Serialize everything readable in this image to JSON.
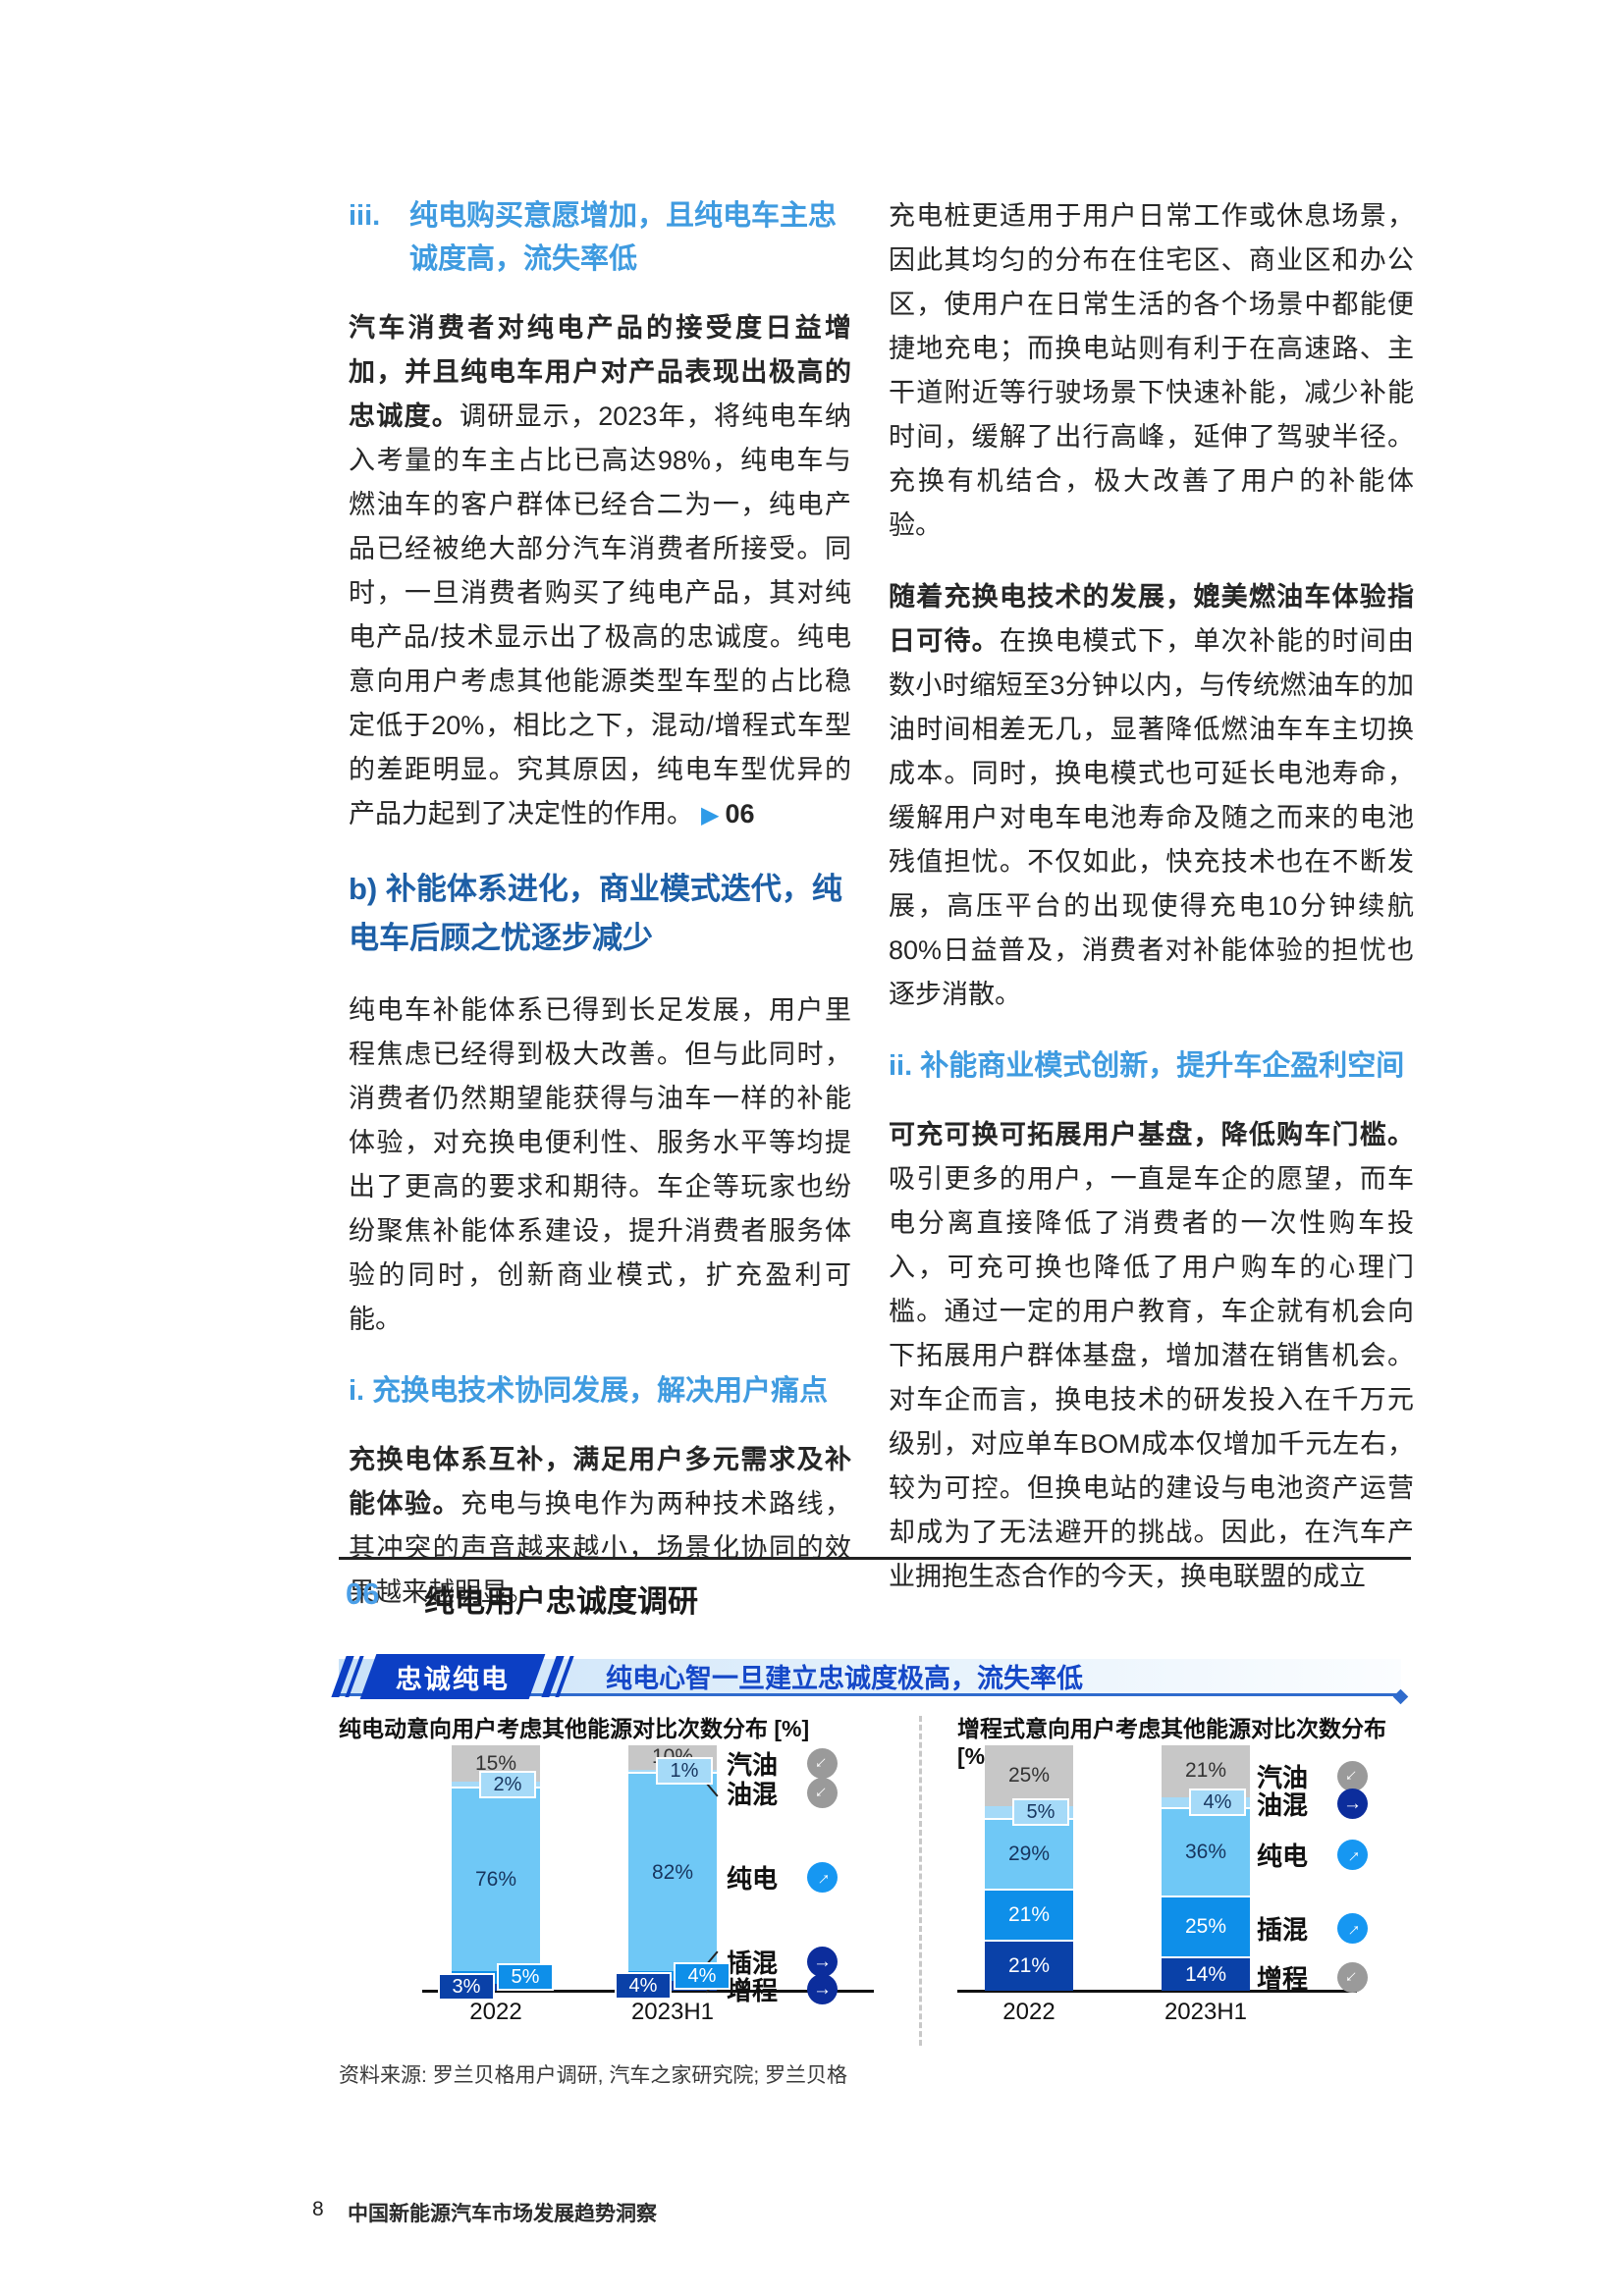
{
  "left_column": {
    "heading_iii_marker": "iii.",
    "heading_iii_text": "纯电购买意愿增加，且纯电车主忠诚度高，流失率低",
    "p1_lead": "汽车消费者对纯电产品的接受度日益增加，并且纯电车用户对产品表现出极高的忠诚度。",
    "p1_rest": "调研显示，2023年，将纯电车纳入考量的车主占比已高达98%，纯电车与燃油车的客户群体已经合二为一，纯电产品已经被绝大部分汽车消费者所接受。同时，一旦消费者购买了纯电产品，其对纯电产品/技术显示出了极高的忠诚度。纯电意向用户考虑其他能源类型车型的占比稳定低于20%，相比之下，混动/增程式车型的差距明显。究其原因，纯电车型优异的产品力起到了决定性的作用。",
    "p1_ref_marker": "▶",
    "p1_ref_number": "06",
    "heading_b": "b) 补能体系进化，商业模式迭代，纯电车后顾之忧逐步减少",
    "p2": "纯电车补能体系已得到长足发展，用户里程焦虑已经得到极大改善。但与此同时，消费者仍然期望能获得与油车一样的补能体验，对充换电便利性、服务水平等均提出了更高的要求和期待。车企等玩家也纷纷聚焦补能体系建设，提升消费者服务体验的同时，创新商业模式，扩充盈利可能。",
    "heading_i": "i. 充换电技术协同发展，解决用户痛点",
    "p3_lead": "充换电体系互补，满足用户多元需求及补能体验。",
    "p3_rest": "充电与换电作为两种技术路线，其冲突的声音越来越小，场景化协同的效果越来越明显。"
  },
  "right_column": {
    "p1": "充电桩更适用于用户日常工作或休息场景，因此其均匀的分布在住宅区、商业区和办公区，使用户在日常生活的各个场景中都能便捷地充电；而换电站则有利于在高速路、主干道附近等行驶场景下快速补能，减少补能时间，缓解了出行高峰，延伸了驾驶半径。充换有机结合，极大改善了用户的补能体验。",
    "p2_lead": "随着充换电技术的发展，媲美燃油车体验指日可待。",
    "p2_rest": "在换电模式下，单次补能的时间由数小时缩短至3分钟以内，与传统燃油车的加油时间相差无几，显著降低燃油车车主切换成本。同时，换电模式也可延长电池寿命，缓解用户对电车电池寿命及随之而来的电池残值担忧。不仅如此，快充技术也在不断发展，高压平台的出现使得充电10分钟续航80%日益普及，消费者对补能体验的担忧也逐步消散。",
    "heading_ii": "ii. 补能商业模式创新，提升车企盈利空间",
    "p3_lead": "可充可换可拓展用户基盘，降低购车门槛。",
    "p3_rest": "吸引更多的用户，一直是车企的愿望，而车电分离直接降低了消费者的一次性购车投入，可充可换也降低了用户购车的心理门槛。通过一定的用户教育，车企就有机会向下拓展用户群体基盘，增加潜在销售机会。对车企而言，换电技术的研发投入在千万元级别，对应单车BOM成本仅增加千元左右，较为可控。但换电站的建设与电池资产运营却成为了无法避开的挑战。因此，在汽车产业拥抱生态合作的今天，换电联盟的成立"
  },
  "figure": {
    "number": "06",
    "title": "纯电用户忠诚度调研",
    "badge": "忠诚纯电",
    "banner_text": "纯电心智一旦建立忠诚度极高，流失率低",
    "source": "资料来源: 罗兰贝格用户调研, 汽车之家研究院; 罗兰贝格",
    "accent_colors": {
      "badge_blue": "#0c3fc4",
      "banner_text_blue": "#1548c8",
      "heading_light_blue": "#3f9be0",
      "heading_dark_blue": "#1d5fa6",
      "figure_number_blue": "#4a9fe8"
    }
  },
  "chart_data": [
    {
      "type": "bar",
      "stacked": true,
      "title": "纯电动意向用户考虑其他能源对比次数分布 [%]",
      "categories": [
        "2022",
        "2023H1"
      ],
      "ylim": [
        0,
        100
      ],
      "legend_position": "right",
      "legend_y": [
        0,
        30,
        116,
        202,
        230
      ],
      "series": [
        {
          "name": "汽油",
          "values": [
            15,
            10
          ],
          "color": "#c7c7c7",
          "label_color": "#333333",
          "trend": "down",
          "trend_color": "#9a9a9a"
        },
        {
          "name": "油混",
          "values": [
            2,
            1
          ],
          "color": "#a5daf8",
          "label_color": "#17355e",
          "trend": "down",
          "trend_color": "#9a9a9a"
        },
        {
          "name": "纯电",
          "values": [
            76,
            82
          ],
          "color": "#6fc8f6",
          "label_color": "#17355e",
          "trend": "up",
          "trend_color": "#1697f2"
        },
        {
          "name": "插混",
          "values": [
            5,
            4
          ],
          "color": "#0e8fe9",
          "label_color": "#ffffff",
          "trend": "flat",
          "trend_color": "#0c2d9c"
        },
        {
          "name": "增程",
          "values": [
            3,
            4
          ],
          "color": "#0a41a8",
          "label_color": "#ffffff",
          "trend": "flat",
          "trend_color": "#0c2d9c"
        }
      ]
    },
    {
      "type": "bar",
      "stacked": true,
      "title": "增程式意向用户考虑其他能源对比次数分布 [%]",
      "categories": [
        "2022",
        "2023H1"
      ],
      "ylim": [
        0,
        100
      ],
      "legend_position": "right",
      "legend_y": [
        13,
        41,
        93,
        168,
        218
      ],
      "series": [
        {
          "name": "汽油",
          "values": [
            25,
            21
          ],
          "color": "#c7c7c7",
          "label_color": "#333333",
          "trend": "down",
          "trend_color": "#9a9a9a"
        },
        {
          "name": "油混",
          "values": [
            5,
            4
          ],
          "color": "#a5daf8",
          "label_color": "#17355e",
          "trend": "flat",
          "trend_color": "#0c2d9c"
        },
        {
          "name": "纯电",
          "values": [
            29,
            36
          ],
          "color": "#6fc8f6",
          "label_color": "#17355e",
          "trend": "up",
          "trend_color": "#1697f2"
        },
        {
          "name": "插混",
          "values": [
            21,
            25
          ],
          "color": "#0e8fe9",
          "label_color": "#ffffff",
          "trend": "up",
          "trend_color": "#1697f2"
        },
        {
          "name": "增程",
          "values": [
            21,
            14
          ],
          "color": "#0a41a8",
          "label_color": "#ffffff",
          "trend": "down",
          "trend_color": "#9a9a9a"
        }
      ]
    }
  ],
  "footer": {
    "page_number": "8",
    "text": "中国新能源汽车市场发展趋势洞察"
  }
}
